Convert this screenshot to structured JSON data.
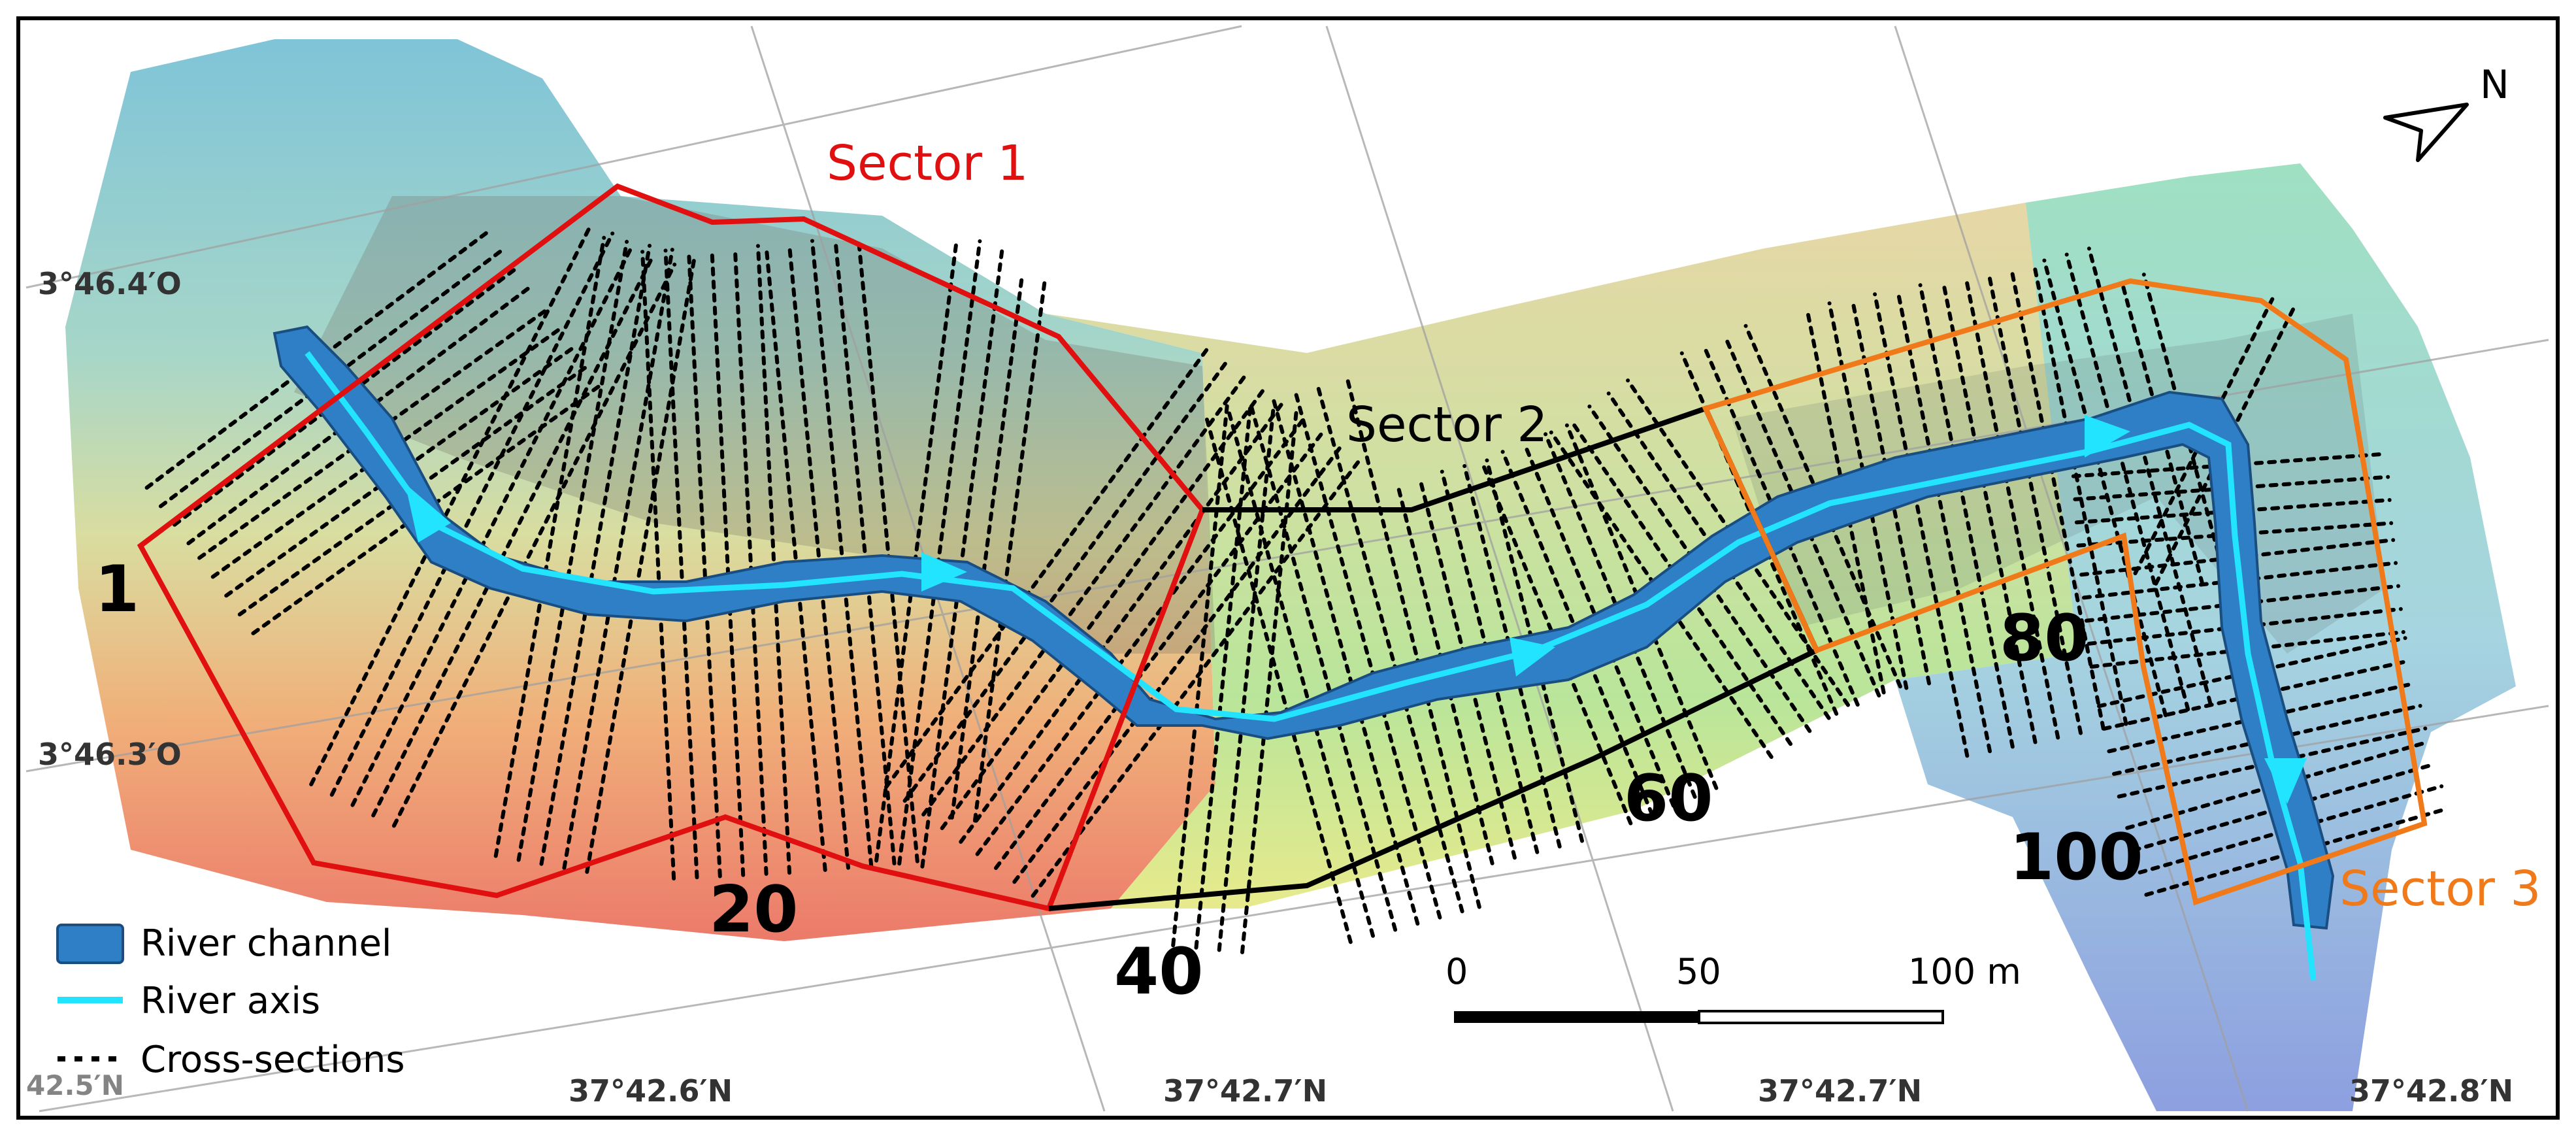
{
  "sectors": [
    {
      "label": "Sector 1",
      "color": "#e01010"
    },
    {
      "label": "Sector 2",
      "color": "#000000"
    },
    {
      "label": "Sector 3",
      "color": "#f07a1a"
    }
  ],
  "section_numbers": [
    "1",
    "20",
    "40",
    "60",
    "80",
    "100"
  ],
  "north_label": "N",
  "coordinates": {
    "lon": [
      "3°46.4′O",
      "3°46.3′O"
    ],
    "lat": [
      "37°42.6′N",
      "37°42.7′N",
      "37°42.7′N",
      "37°42.8′N"
    ],
    "corner_fragment": "42.5′N"
  },
  "scale_bar": {
    "labels": [
      "0",
      "50",
      "100 m"
    ]
  },
  "legend": [
    {
      "label": "River channel",
      "symbol": "river-channel"
    },
    {
      "label": "River axis",
      "symbol": "river-axis"
    },
    {
      "label": "Cross-sections",
      "symbol": "cross-sections"
    }
  ],
  "colors": {
    "river_channel": "#2f7fc6",
    "river_axis": "#22e4ff",
    "cross_sections": "#000000"
  }
}
